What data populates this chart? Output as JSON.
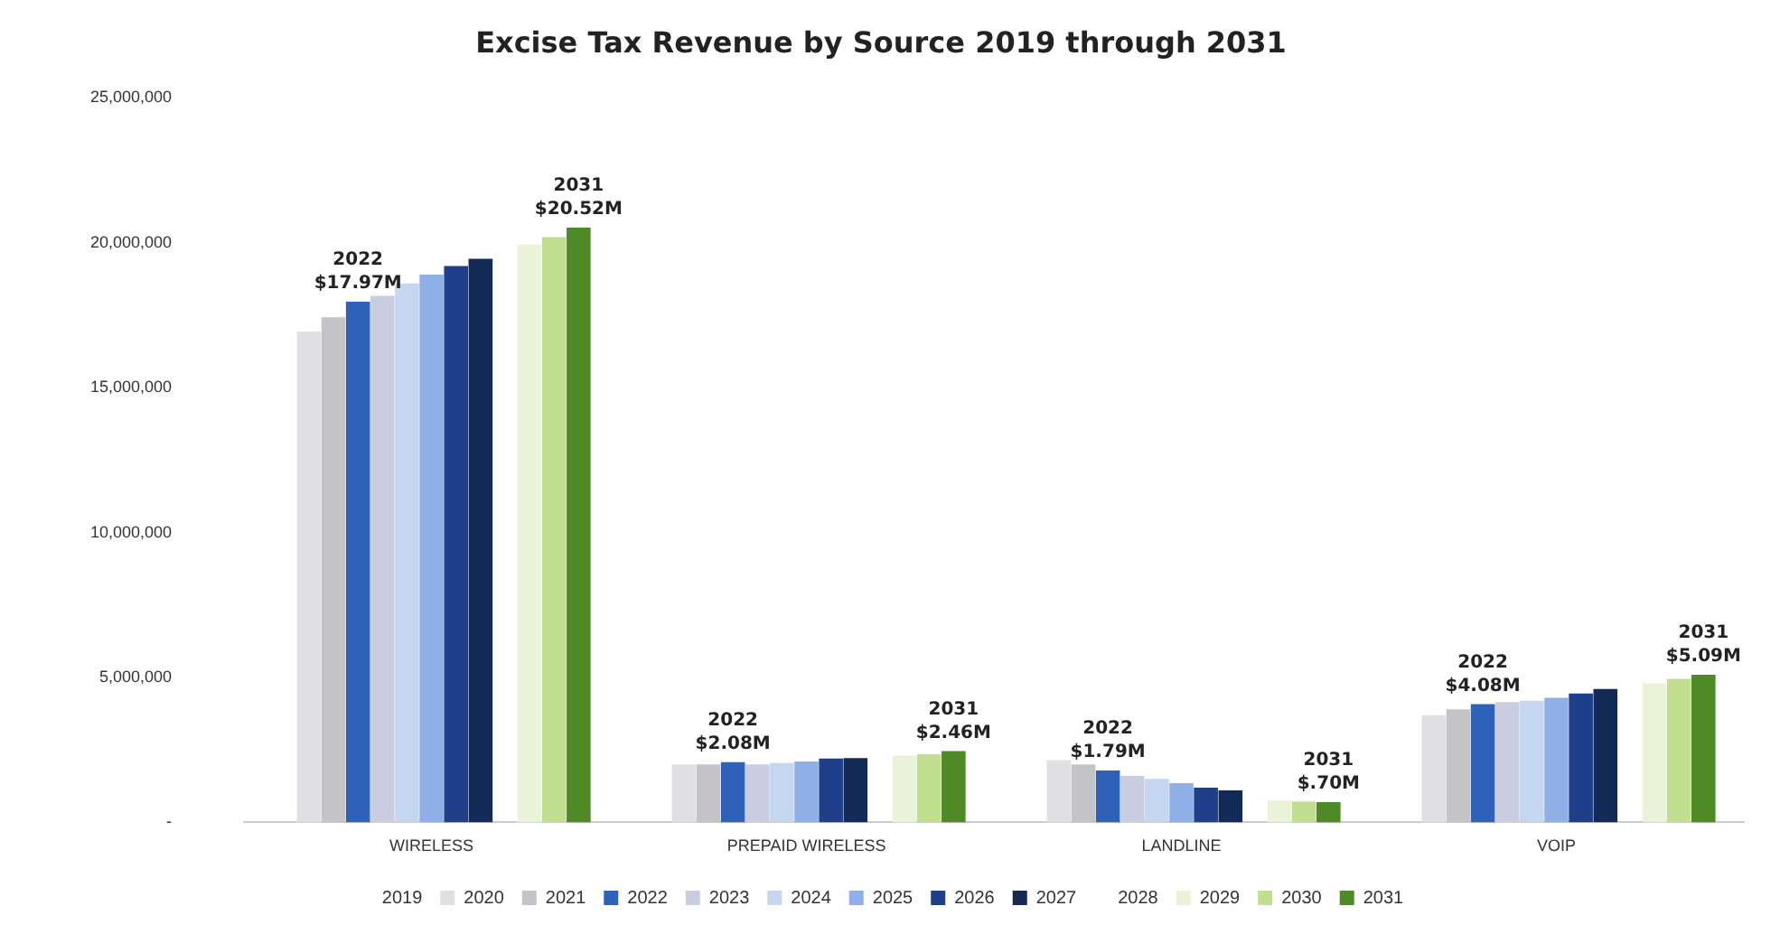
{
  "chart_data": {
    "type": "bar",
    "title": "Excise Tax Revenue by Source 2019 through 2031",
    "categories": [
      "WIRELESS",
      "PREPAID WIRELESS",
      "LANDLINE",
      "VOIP"
    ],
    "series": [
      {
        "name": "2019",
        "values": [
          null,
          null,
          null,
          null
        ]
      },
      {
        "name": "2020",
        "color": "#e0e0e4",
        "values": [
          16940000,
          2000000,
          2150000,
          3700000
        ]
      },
      {
        "name": "2021",
        "color": "#c4c4c8",
        "values": [
          17430000,
          2000000,
          2000000,
          3900000
        ]
      },
      {
        "name": "2022",
        "color": "#2e62b8",
        "values": [
          17970000,
          2080000,
          1790000,
          4080000
        ],
        "value_labels": [
          "2022\n$17.97M",
          "2022\n$2.08M",
          "2022\n$1.79M",
          "2022\n$4.08M"
        ]
      },
      {
        "name": "2023",
        "color": "#c8cde0",
        "values": [
          18170000,
          2000000,
          1600000,
          4150000
        ]
      },
      {
        "name": "2024",
        "color": "#c4d6f0",
        "values": [
          18600000,
          2050000,
          1500000,
          4200000
        ]
      },
      {
        "name": "2025",
        "color": "#8fb0e6",
        "values": [
          18900000,
          2100000,
          1350000,
          4300000
        ]
      },
      {
        "name": "2026",
        "color": "#1f3f8a",
        "values": [
          19200000,
          2200000,
          1200000,
          4450000
        ]
      },
      {
        "name": "2027",
        "color": "#122a55",
        "values": [
          19450000,
          2220000,
          1100000,
          4600000
        ]
      },
      {
        "name": "2028",
        "values": [
          null,
          null,
          null,
          null
        ]
      },
      {
        "name": "2029",
        "color": "#eaf2d8",
        "values": [
          19940000,
          2300000,
          750000,
          4800000
        ]
      },
      {
        "name": "2030",
        "color": "#c2df90",
        "values": [
          20200000,
          2350000,
          720000,
          4950000
        ]
      },
      {
        "name": "2031",
        "color": "#4e8a26",
        "values": [
          20520000,
          2460000,
          700000,
          5090000
        ],
        "value_labels": [
          "2031\n$20.52M",
          "2031\n$2.46M",
          "2031\n$.70M",
          "2031\n$5.09M"
        ]
      }
    ],
    "ylim": [
      0,
      25000000
    ],
    "yticks": [
      {
        "value": 0,
        "label": "-"
      },
      {
        "value": 5000000,
        "label": "5,000,000"
      },
      {
        "value": 10000000,
        "label": "10,000,000"
      },
      {
        "value": 15000000,
        "label": "15,000,000"
      },
      {
        "value": 20000000,
        "label": "20,000,000"
      },
      {
        "value": 25000000,
        "label": "25,000,000"
      }
    ],
    "grid": false,
    "legend": "bottom"
  }
}
